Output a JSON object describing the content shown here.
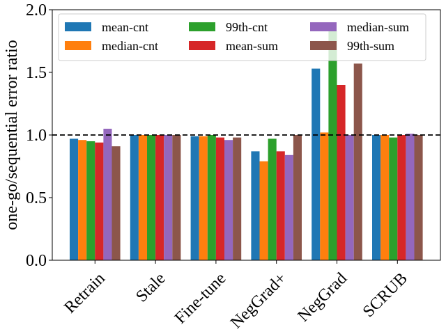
{
  "chart_data": {
    "type": "bar",
    "title": "",
    "xlabel": "",
    "ylabel": "one-go/sequential error ratio",
    "ylim": [
      0,
      2.0
    ],
    "yticks": [
      "0.0",
      "0.5",
      "1.0",
      "1.5",
      "2.0"
    ],
    "ytick_values": [
      0,
      0.5,
      1.0,
      1.5,
      2.0
    ],
    "reference_line": 1.0,
    "legend_position": "top",
    "categories": [
      "Retrain",
      "Stale",
      "Fine-tune",
      "NegGrad+",
      "NegGrad",
      "SCRUB"
    ],
    "series": [
      {
        "name": "mean-cnt",
        "color": "#1f77b4",
        "values": [
          0.97,
          1.0,
          0.99,
          0.87,
          1.53,
          1.0
        ]
      },
      {
        "name": "median-cnt",
        "color": "#ff7f0e",
        "values": [
          0.96,
          1.0,
          0.99,
          0.79,
          1.02,
          1.0
        ]
      },
      {
        "name": "99th-cnt",
        "color": "#2ca02c",
        "values": [
          0.95,
          1.0,
          1.0,
          0.97,
          1.83,
          0.98
        ]
      },
      {
        "name": "mean-sum",
        "color": "#d62728",
        "values": [
          0.94,
          1.0,
          0.98,
          0.87,
          1.4,
          1.0
        ]
      },
      {
        "name": "median-sum",
        "color": "#9467bd",
        "values": [
          1.05,
          1.0,
          0.96,
          0.84,
          1.0,
          1.01
        ]
      },
      {
        "name": "99th-sum",
        "color": "#8c564b",
        "values": [
          0.91,
          1.0,
          0.98,
          1.0,
          1.57,
          1.0
        ]
      }
    ]
  }
}
